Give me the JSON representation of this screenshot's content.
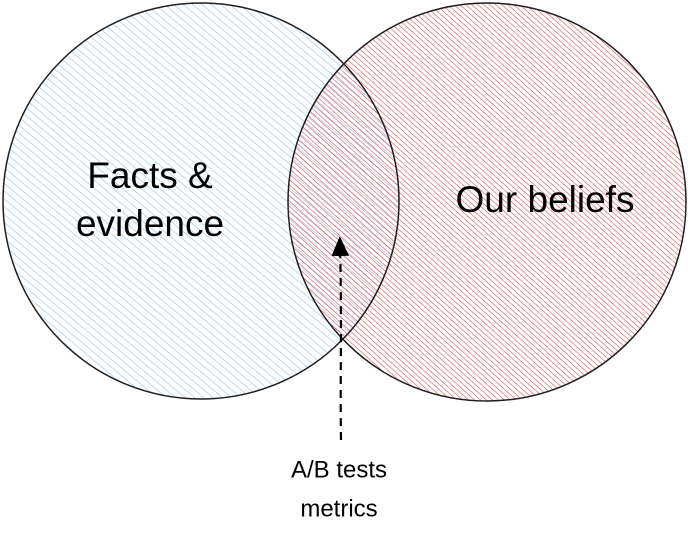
{
  "nodes": [
    {
      "label": [
        "Facts &",
        "evidence"
      ]
    },
    {
      "label": "Our beliefs"
    }
  ],
  "annotation": {
    "lines": [
      "A/B tests",
      "metrics"
    ]
  }
}
